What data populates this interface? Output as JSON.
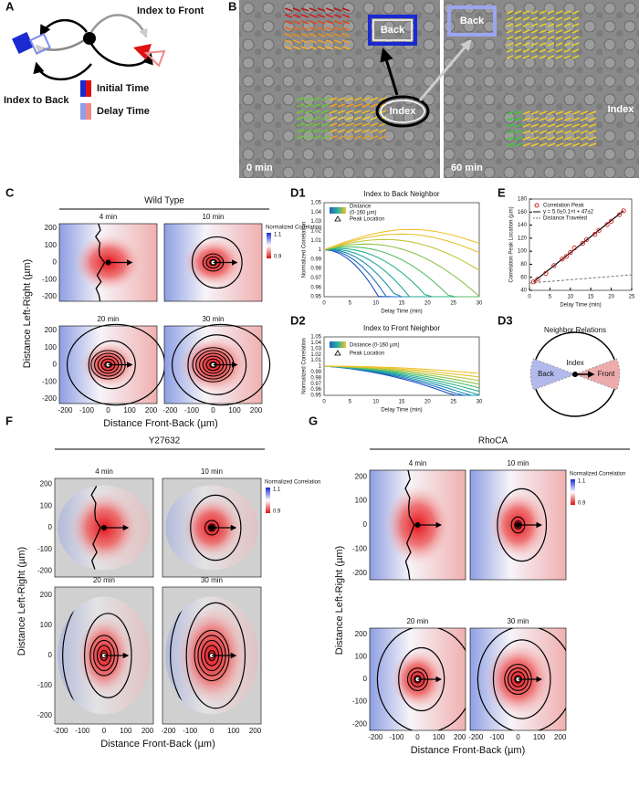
{
  "panel_labels": {
    "A": "A",
    "B": "B",
    "C": "C",
    "D1": "D1",
    "D2": "D2",
    "D3": "D3",
    "E": "E",
    "F": "F",
    "G": "G"
  },
  "panel_a": {
    "index_to_front": "Index to Front",
    "index_to_back": "Index to Back",
    "initial_time": "Initial Time",
    "delay_time": "Delay Time"
  },
  "panel_b": {
    "left_image": {
      "back": "Back",
      "index": "Index",
      "time": "0 min"
    },
    "right_image": {
      "back": "Back",
      "index": "Index",
      "time": "60 min"
    }
  },
  "heatmap_axes": {
    "y_label": "Distance Left-Right (µm)",
    "x_label": "Distance Front-Back (µm)",
    "y_ticks": [
      200,
      100,
      0,
      -100,
      -200
    ],
    "x_ticks": [
      -200,
      -100,
      0,
      100,
      200
    ],
    "times": [
      "4 min",
      "10 min",
      "20 min",
      "30 min"
    ],
    "colorbar_title": "Normalized Correlation",
    "colorbar_ticks": [
      1.1,
      0.9
    ]
  },
  "panel_c": {
    "title": "Wild Type"
  },
  "panel_f": {
    "title": "Y27632"
  },
  "panel_g": {
    "title": "RhoCA"
  },
  "d_axes": {
    "yticks": [
      1.05,
      1.04,
      1.03,
      1.02,
      1.01,
      1,
      0.99,
      0.98,
      0.97,
      0.96,
      0.95
    ],
    "xticks": [
      0,
      5,
      10,
      15,
      20,
      25,
      30
    ],
    "y_label": "Normalized Correlation",
    "x_label": "Delay Time (min)"
  },
  "panel_d1": {
    "title": "Index to Back Neighbor",
    "legend": {
      "distance": [
        "Distance",
        "(0-160 µm)"
      ],
      "peak": "Peak Location"
    }
  },
  "panel_d2": {
    "title": "Index to Front Neighbor",
    "legend": {
      "distance": "Distance (0-160 µm)",
      "peak": "Peak Location"
    }
  },
  "panel_d3": {
    "title": "Neighbor Relations",
    "index": "Index",
    "back": "Back",
    "front": "Front"
  },
  "panel_e": {
    "legend": {
      "peak": "Correlation Peak",
      "fit": "y = 5.0±0.1×t + 47±2",
      "distance": "Distance Traveled"
    },
    "y_label": "Correlation Peak Location (µm)",
    "x_label": "Delay Time (min)",
    "xlim": [
      0,
      25
    ],
    "ylim": [
      40,
      180
    ],
    "xticks": [
      0,
      5,
      10,
      15,
      20,
      25
    ],
    "yticks": [
      40,
      60,
      80,
      100,
      120,
      140,
      160,
      180
    ],
    "points": {
      "x": [
        1,
        2,
        4,
        6,
        8,
        9,
        10,
        11,
        13,
        14,
        16,
        17,
        19,
        20,
        22,
        23
      ],
      "y": [
        53,
        57,
        66,
        78,
        88,
        92,
        98,
        105,
        112,
        118,
        126,
        132,
        141,
        146,
        156,
        162
      ]
    }
  }
}
